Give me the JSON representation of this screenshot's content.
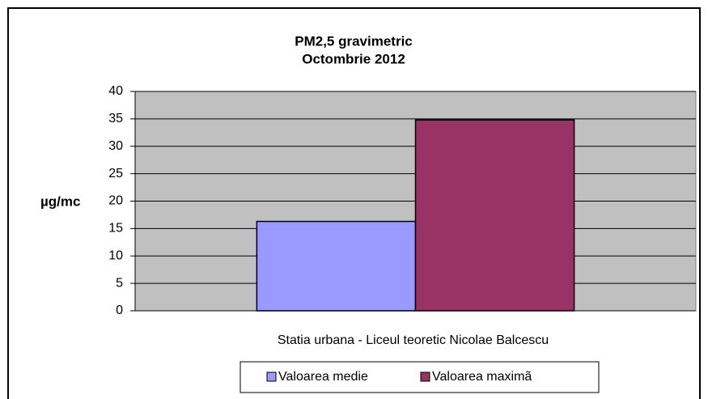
{
  "chart_data": {
    "type": "bar",
    "title": "PM2,5 gravimetric",
    "subtitle": "Octombrie 2012",
    "y_label": "µg/mc",
    "categories": [
      "Statia urbana - Liceul teoretic Nicolae  Balcescu"
    ],
    "series": [
      {
        "name": "Valoarea medie",
        "color": "#9999ff",
        "values": [
          16.3
        ]
      },
      {
        "name": "Valoarea maximã",
        "color": "#993366",
        "values": [
          34.8
        ]
      }
    ],
    "ylim": [
      0,
      40
    ],
    "yticks": [
      0,
      5,
      10,
      15,
      20,
      25,
      30,
      35,
      40
    ],
    "grid": true
  }
}
